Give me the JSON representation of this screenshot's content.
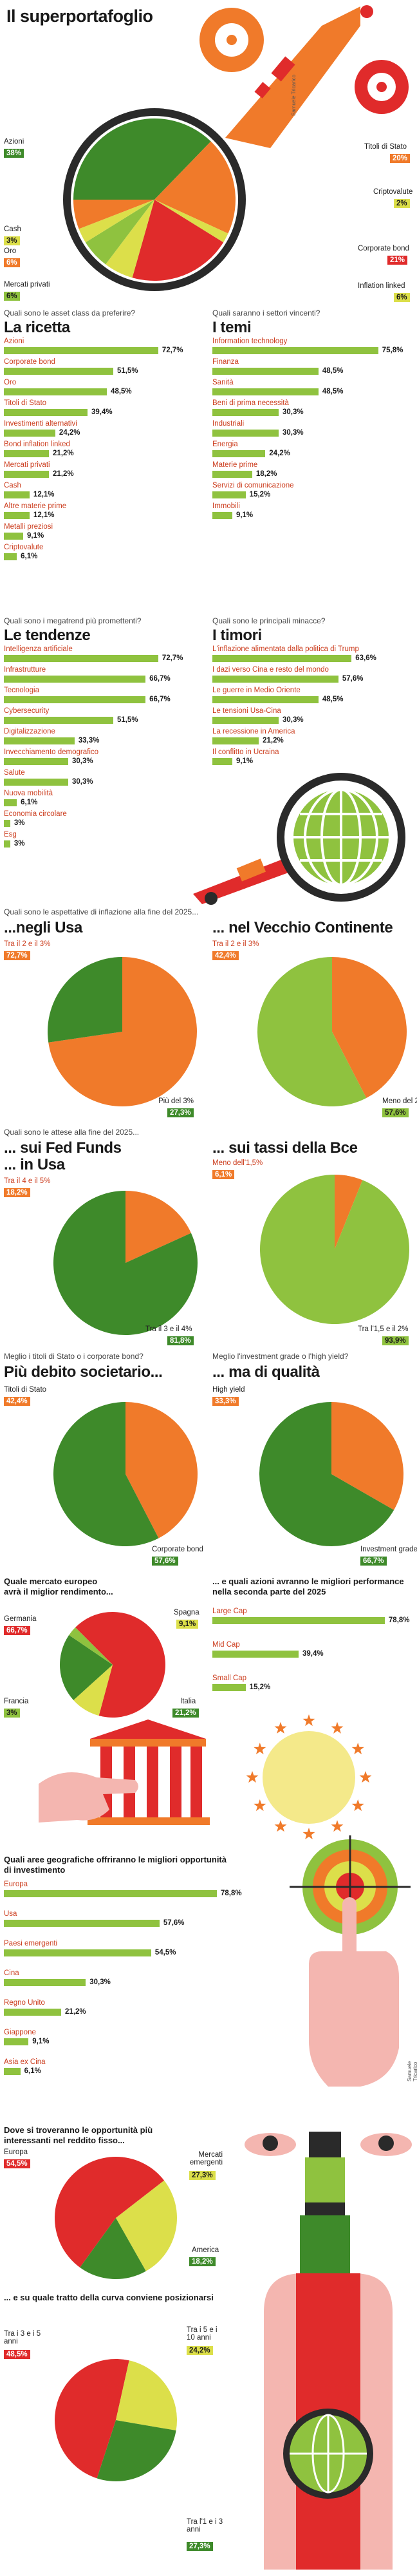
{
  "page_title": "Il superportafoglio",
  "credit_top": "Samuele Tricarico",
  "credit_mid": "Samuele Tricarico",
  "portfolio": {
    "legend": [
      {
        "label": "Azioni",
        "value": "38%",
        "color": "#3e8a2a"
      },
      {
        "label": "Titoli di Stato",
        "value": "20%",
        "color": "#f07a2a"
      },
      {
        "label": "Criptovalute",
        "value": "2%",
        "color": "#dcdf4a"
      },
      {
        "label": "Cash",
        "value": "3%",
        "color": "#dcdf4a"
      },
      {
        "label": "Oro",
        "value": "6%",
        "color": "#f07a2a"
      },
      {
        "label": "Corporate bond",
        "value": "21%",
        "color": "#e02b2b"
      },
      {
        "label": "Mercati privati",
        "value": "6%",
        "color": "#8fc23f"
      },
      {
        "label": "Inflation linked",
        "value": "6%",
        "color": "#dcdf4a"
      }
    ]
  },
  "sections": {
    "ricetta": {
      "question": "Quali sono le asset class da preferire?",
      "title": "La ricetta",
      "rows": [
        {
          "label": "Azioni",
          "value": "72,7%",
          "n": 72.7
        },
        {
          "label": "Corporate bond",
          "value": "51,5%",
          "n": 51.5
        },
        {
          "label": "Oro",
          "value": "48,5%",
          "n": 48.5
        },
        {
          "label": "Titoli di Stato",
          "value": "39,4%",
          "n": 39.4
        },
        {
          "label": "Investimenti alternativi",
          "value": "24,2%",
          "n": 24.2
        },
        {
          "label": "Bond inflation linked",
          "value": "21,2%",
          "n": 21.2
        },
        {
          "label": "Mercati privati",
          "value": "21,2%",
          "n": 21.2
        },
        {
          "label": "Cash",
          "value": "12,1%",
          "n": 12.1
        },
        {
          "label": "Altre materie prime",
          "value": "12,1%",
          "n": 12.1
        },
        {
          "label": "Metalli preziosi",
          "value": "9,1%",
          "n": 9.1
        },
        {
          "label": "Criptovalute",
          "value": "6,1%",
          "n": 6.1
        }
      ]
    },
    "temi": {
      "question": "Quali saranno i settori vincenti?",
      "title": "I temi",
      "rows": [
        {
          "label": "Information technology",
          "value": "75,8%",
          "n": 75.8
        },
        {
          "label": "Finanza",
          "value": "48,5%",
          "n": 48.5
        },
        {
          "label": "Sanità",
          "value": "48,5%",
          "n": 48.5
        },
        {
          "label": "Beni di prima necessità",
          "value": "30,3%",
          "n": 30.3
        },
        {
          "label": "Industriali",
          "value": "30,3%",
          "n": 30.3
        },
        {
          "label": "Energia",
          "value": "24,2%",
          "n": 24.2
        },
        {
          "label": "Materie prime",
          "value": "18,2%",
          "n": 18.2
        },
        {
          "label": "Servizi di comunicazione",
          "value": "15,2%",
          "n": 15.2
        },
        {
          "label": "Immobili",
          "value": "9,1%",
          "n": 9.1
        }
      ]
    },
    "tendenze": {
      "question": "Quali sono i megatrend più promettenti?",
      "title": "Le tendenze",
      "rows": [
        {
          "label": "Intelligenza artificiale",
          "value": "72,7%",
          "n": 72.7
        },
        {
          "label": "Infrastrutture",
          "value": "66,7%",
          "n": 66.7
        },
        {
          "label": "Tecnologia",
          "value": "66,7%",
          "n": 66.7
        },
        {
          "label": "Cybersecurity",
          "value": "51,5%",
          "n": 51.5
        },
        {
          "label": "Digitalizzazione",
          "value": "33,3%",
          "n": 33.3
        },
        {
          "label": "Invecchiamento demografico",
          "value": "30,3%",
          "n": 30.3
        },
        {
          "label": "Salute",
          "value": "30,3%",
          "n": 30.3
        },
        {
          "label": "Nuova mobilità",
          "value": "6,1%",
          "n": 6.1
        },
        {
          "label": "Economia circolare",
          "value": "3%",
          "n": 3
        },
        {
          "label": "Esg",
          "value": "3%",
          "n": 3
        }
      ]
    },
    "timori": {
      "question": "Quali sono le principali minacce?",
      "title": "I timori",
      "rows": [
        {
          "label": "L'inflazione alimentata dalla politica di Trump",
          "value": "63,6%",
          "n": 63.6
        },
        {
          "label": "I dazi verso Cina e resto del mondo",
          "value": "57,6%",
          "n": 57.6
        },
        {
          "label": "Le guerre in Medio Oriente",
          "value": "48,5%",
          "n": 48.5
        },
        {
          "label": "Le tensioni Usa-Cina",
          "value": "30,3%",
          "n": 30.3
        },
        {
          "label": "La recessione in America",
          "value": "21,2%",
          "n": 21.2
        },
        {
          "label": "Il conflitto in Ucraina",
          "value": "9,1%",
          "n": 9.1
        }
      ]
    }
  },
  "inflation": {
    "question": "Quali sono le aspettative di inflazione alla fine del 2025...",
    "left": {
      "title": "...negli Usa",
      "a_label": "Tra il 2 e il 3%",
      "a_value": "72,7%",
      "b_label": "Più del 3%",
      "b_value": "27,3%"
    },
    "right": {
      "title": "... nel Vecchio Continente",
      "a_label": "Tra il 2 e il 3%",
      "a_value": "42,4%",
      "b_label": "Meno del 2%",
      "b_value": "57,6%"
    }
  },
  "rates": {
    "question": "Quali sono le attese alla fine del 2025...",
    "left": {
      "title": "... sui Fed Funds",
      "title2": "... in Usa",
      "a_label": "Tra il 4 e il 5%",
      "a_value": "18,2%",
      "b_label": "Tra il 3 e il 4%",
      "b_value": "81,8%"
    },
    "right": {
      "title": "... sui tassi della Bce",
      "a_label": "Meno dell'1,5%",
      "a_value": "6,1%",
      "b_label": "Tra l'1,5 e il 2%",
      "b_value": "93,9%"
    }
  },
  "bonds": {
    "left": {
      "question": "Meglio i titoli di Stato o i corporate bond?",
      "title": "Più debito societario...",
      "a_label": "Titoli di Stato",
      "a_value": "42,4%",
      "b_label": "Corporate bond",
      "b_value": "57,6%"
    },
    "right": {
      "question": "Meglio l'investment grade o l'high yield?",
      "title": "... ma di qualità",
      "a_label": "High yield",
      "a_value": "33,3%",
      "b_label": "Investment grade",
      "b_value": "66,7%"
    }
  },
  "europe": {
    "question": "Quale mercato europeo avrà il miglior rendimento...",
    "slices": [
      {
        "label": "Germania",
        "value": "66,7%"
      },
      {
        "label": "Spagna",
        "value": "9,1%"
      },
      {
        "label": "Italia",
        "value": "21,2%"
      },
      {
        "label": "Francia",
        "value": "3%"
      }
    ],
    "cap_question": "... e quali azioni avranno le migliori performance nella seconda parte del 2025",
    "cap_rows": [
      {
        "label": "Large Cap",
        "value": "78,8%",
        "n": 78.8
      },
      {
        "label": "Mid Cap",
        "value": "39,4%",
        "n": 39.4
      },
      {
        "label": "Small Cap",
        "value": "15,2%",
        "n": 15.2
      }
    ]
  },
  "geo": {
    "question": "Quali aree geografiche offriranno le migliori opportunità di investimento",
    "rows": [
      {
        "label": "Europa",
        "value": "78,8%",
        "n": 78.8
      },
      {
        "label": "Usa",
        "value": "57,6%",
        "n": 57.6
      },
      {
        "label": "Paesi emergenti",
        "value": "54,5%",
        "n": 54.5
      },
      {
        "label": "Cina",
        "value": "30,3%",
        "n": 30.3
      },
      {
        "label": "Regno Unito",
        "value": "21,2%",
        "n": 21.2
      },
      {
        "label": "Giappone",
        "value": "9,1%",
        "n": 9.1
      },
      {
        "label": "Asia ex Cina",
        "value": "6,1%",
        "n": 6.1
      }
    ]
  },
  "fixed": {
    "question": "Dove si troveranno le opportunità più interessanti nel reddito fisso...",
    "a_label": "Europa",
    "a_value": "54,5%",
    "b_label": "Mercati emergenti",
    "b_value": "27,3%",
    "c_label": "America",
    "c_value": "18,2%",
    "curve_question": "... e su quale tratto della curva conviene posizionarsi",
    "curve": [
      {
        "label": "Tra i 3 e i 5 anni",
        "value": "48,5%"
      },
      {
        "label": "Tra i 5 e i 10 anni",
        "value": "24,2%"
      },
      {
        "label": "Tra l'1 e i 3 anni",
        "value": "27,3%"
      }
    ]
  },
  "chart_data": [
    {
      "type": "pie",
      "title": "Il superportafoglio",
      "categories": [
        "Azioni",
        "Titoli di Stato",
        "Corporate bond",
        "Oro",
        "Mercati privati",
        "Inflation linked",
        "Cash",
        "Criptovalute"
      ],
      "values": [
        38,
        20,
        21,
        6,
        6,
        6,
        3,
        2
      ]
    },
    {
      "type": "bar",
      "title": "La ricetta",
      "categories": [
        "Azioni",
        "Corporate bond",
        "Oro",
        "Titoli di Stato",
        "Investimenti alternativi",
        "Bond inflation linked",
        "Mercati privati",
        "Cash",
        "Altre materie prime",
        "Metalli preziosi",
        "Criptovalute"
      ],
      "values": [
        72.7,
        51.5,
        48.5,
        39.4,
        24.2,
        21.2,
        21.2,
        12.1,
        12.1,
        9.1,
        6.1
      ]
    },
    {
      "type": "bar",
      "title": "I temi",
      "categories": [
        "Information technology",
        "Finanza",
        "Sanità",
        "Beni di prima necessità",
        "Industriali",
        "Energia",
        "Materie prime",
        "Servizi di comunicazione",
        "Immobili"
      ],
      "values": [
        75.8,
        48.5,
        48.5,
        30.3,
        30.3,
        24.2,
        18.2,
        15.2,
        9.1
      ]
    },
    {
      "type": "bar",
      "title": "Le tendenze",
      "categories": [
        "Intelligenza artificiale",
        "Infrastrutture",
        "Tecnologia",
        "Cybersecurity",
        "Digitalizzazione",
        "Invecchiamento demografico",
        "Salute",
        "Nuova mobilità",
        "Economia circolare",
        "Esg"
      ],
      "values": [
        72.7,
        66.7,
        66.7,
        51.5,
        33.3,
        30.3,
        30.3,
        6.1,
        3,
        3
      ]
    },
    {
      "type": "bar",
      "title": "I timori",
      "categories": [
        "L'inflazione alimentata dalla politica di Trump",
        "I dazi verso Cina e resto del mondo",
        "Le guerre in Medio Oriente",
        "Le tensioni Usa-Cina",
        "La recessione in America",
        "Il conflitto in Ucraina"
      ],
      "values": [
        63.6,
        57.6,
        48.5,
        30.3,
        21.2,
        9.1
      ]
    },
    {
      "type": "pie",
      "title": "...negli Usa",
      "categories": [
        "Tra il 2 e il 3%",
        "Più del 3%"
      ],
      "values": [
        72.7,
        27.3
      ]
    },
    {
      "type": "pie",
      "title": "... nel Vecchio Continente",
      "categories": [
        "Tra il 2 e il 3%",
        "Meno del 2%"
      ],
      "values": [
        42.4,
        57.6
      ]
    },
    {
      "type": "pie",
      "title": "... sui Fed Funds ... in Usa",
      "categories": [
        "Tra il 4 e il 5%",
        "Tra il 3 e il 4%"
      ],
      "values": [
        18.2,
        81.8
      ]
    },
    {
      "type": "pie",
      "title": "... sui tassi della Bce",
      "categories": [
        "Meno dell'1,5%",
        "Tra l'1,5 e il 2%"
      ],
      "values": [
        6.1,
        93.9
      ]
    },
    {
      "type": "pie",
      "title": "Più debito societario...",
      "categories": [
        "Titoli di Stato",
        "Corporate bond"
      ],
      "values": [
        42.4,
        57.6
      ]
    },
    {
      "type": "pie",
      "title": "... ma di qualità",
      "categories": [
        "High yield",
        "Investment grade"
      ],
      "values": [
        33.3,
        66.7
      ]
    },
    {
      "type": "pie",
      "categories": [
        "Germania",
        "Spagna",
        "Italia",
        "Francia"
      ],
      "values": [
        66.7,
        9.1,
        21.2,
        3
      ]
    },
    {
      "type": "bar",
      "categories": [
        "Large Cap",
        "Mid Cap",
        "Small Cap"
      ],
      "values": [
        78.8,
        39.4,
        15.2
      ]
    },
    {
      "type": "bar",
      "categories": [
        "Europa",
        "Usa",
        "Paesi emergenti",
        "Cina",
        "Regno Unito",
        "Giappone",
        "Asia ex Cina"
      ],
      "values": [
        78.8,
        57.6,
        54.5,
        30.3,
        21.2,
        9.1,
        6.1
      ]
    },
    {
      "type": "pie",
      "categories": [
        "Europa",
        "Mercati emergenti",
        "America"
      ],
      "values": [
        54.5,
        27.3,
        18.2
      ]
    },
    {
      "type": "pie",
      "categories": [
        "Tra i 3 e i 5 anni",
        "Tra i 5 e i 10 anni",
        "Tra l'1 e i 3 anni"
      ],
      "values": [
        48.5,
        24.2,
        27.3
      ]
    }
  ]
}
